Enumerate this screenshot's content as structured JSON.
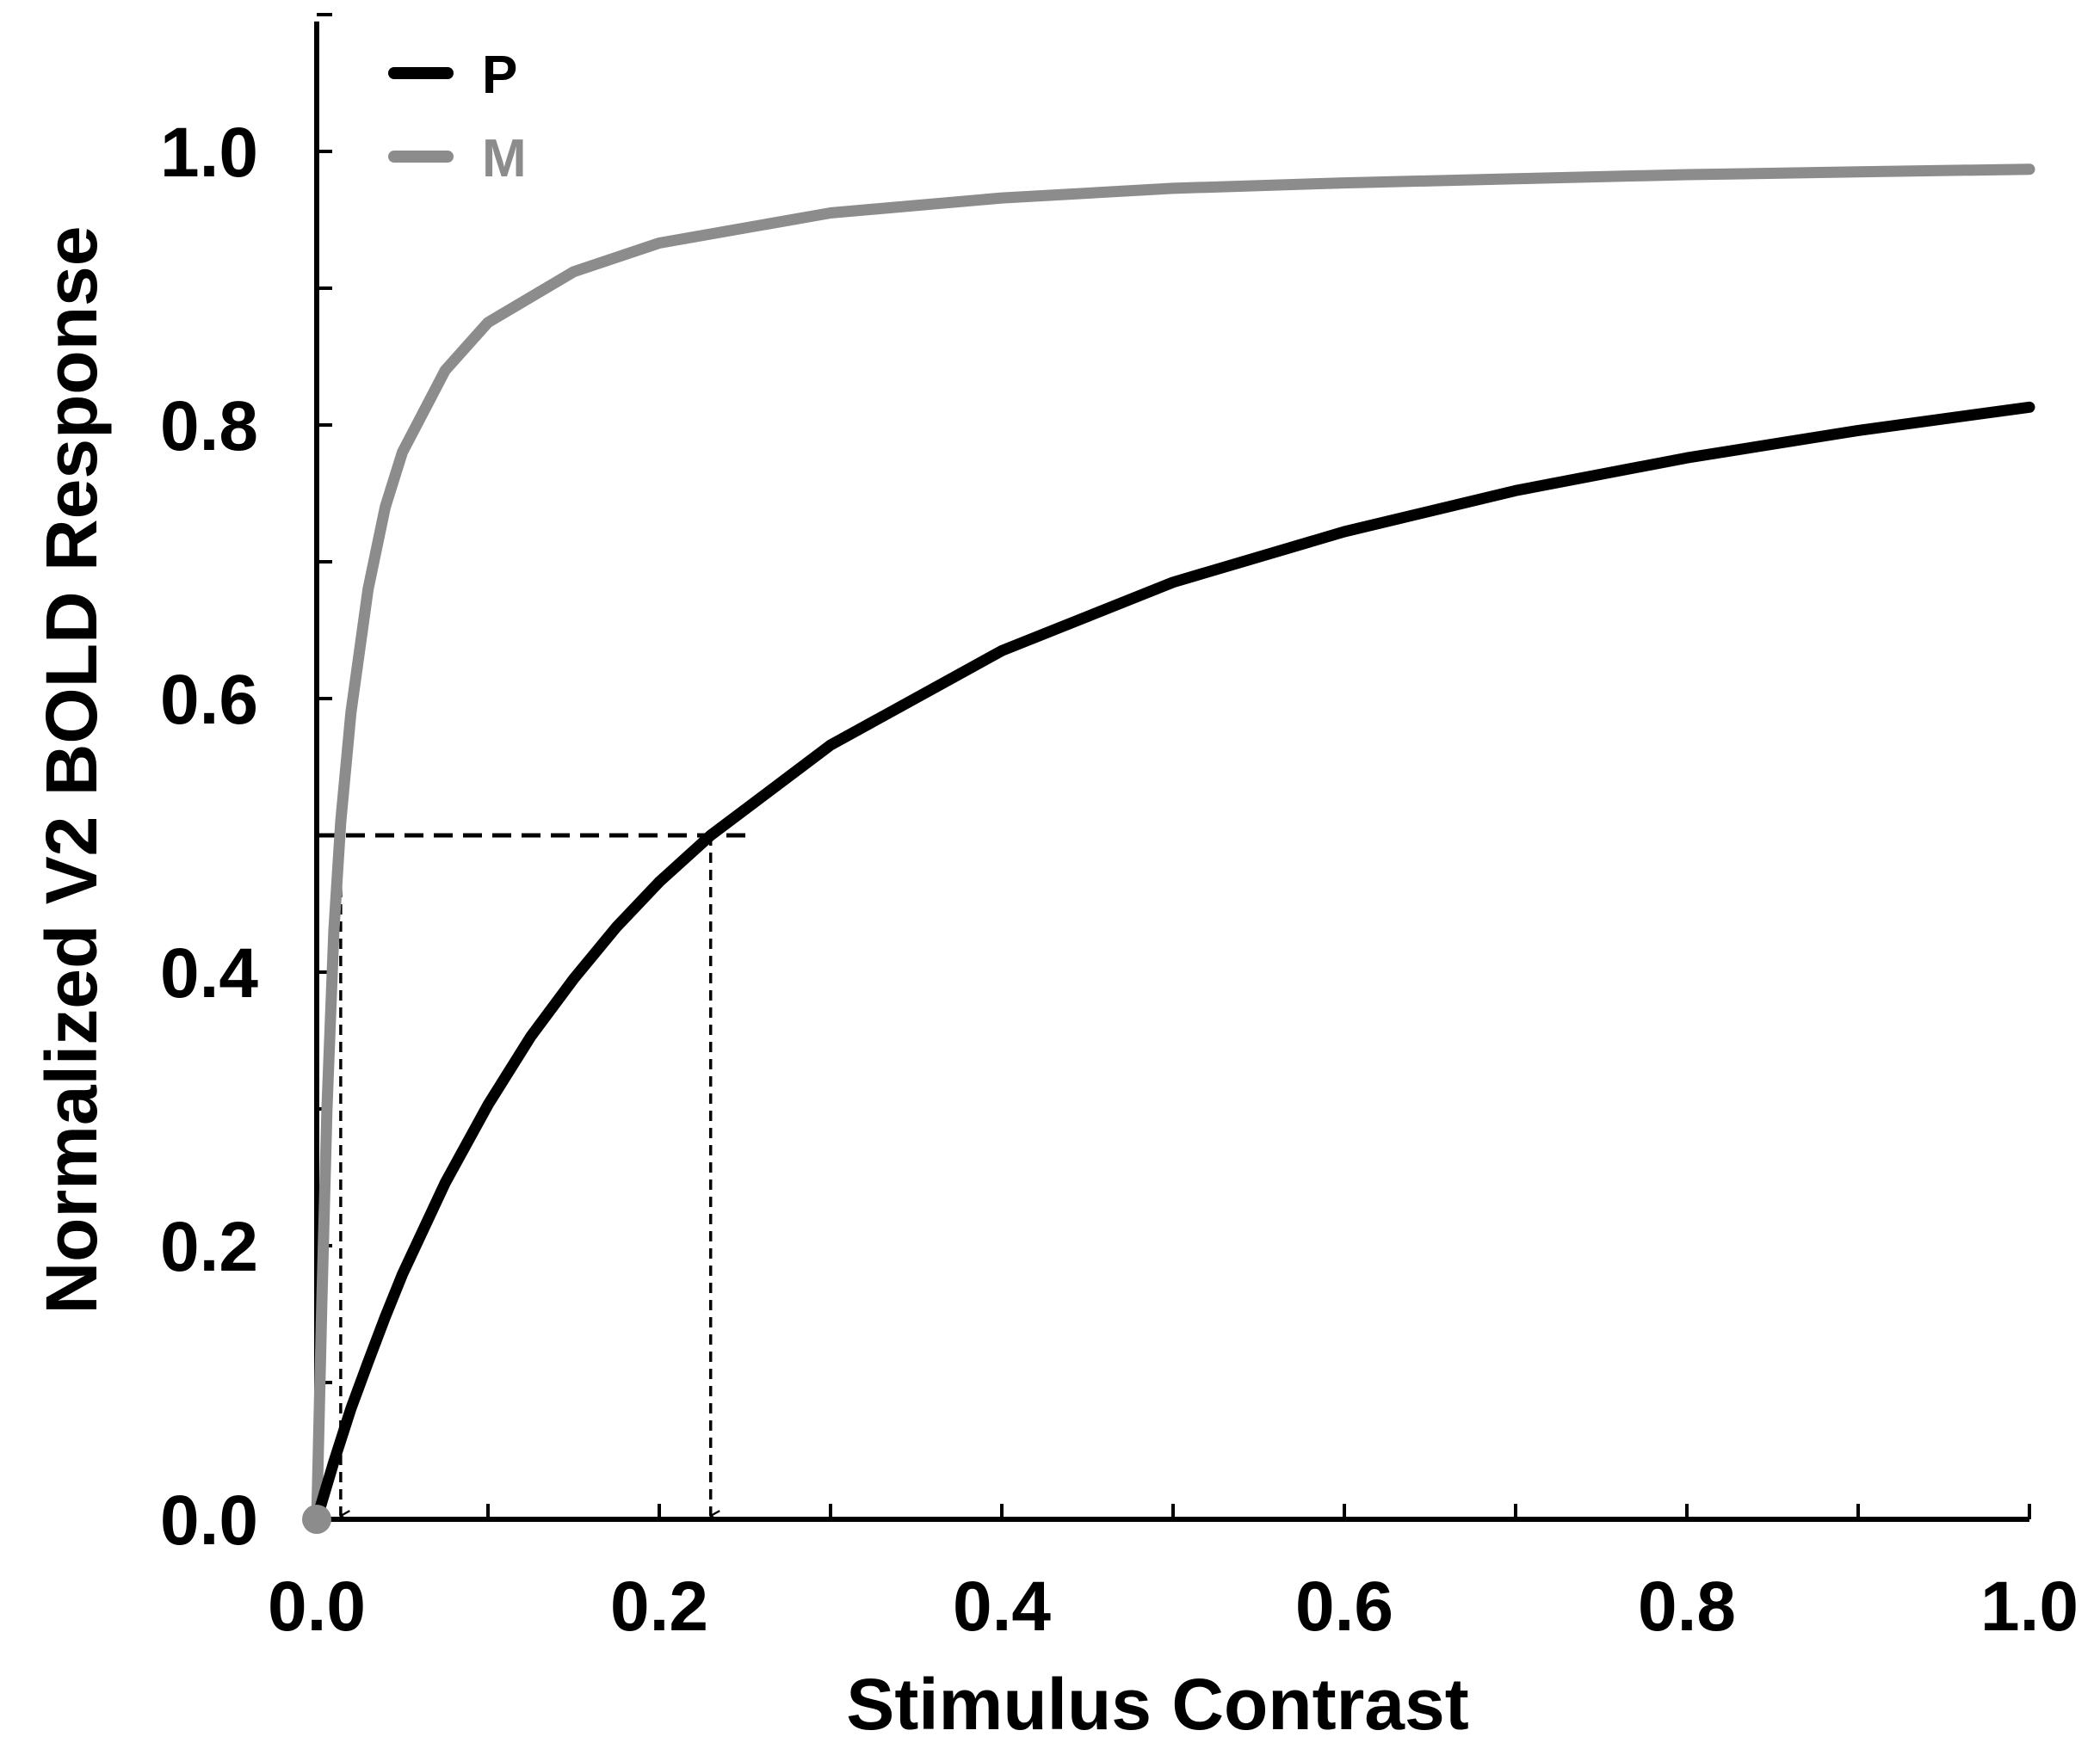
{
  "chart_data": {
    "type": "line",
    "xlabel": "Stimulus Contrast",
    "ylabel": "Normalized V2 BOLD Response",
    "xlim": [
      0,
      1.0
    ],
    "ylim": [
      0,
      1.1
    ],
    "x_ticks": [
      "0.0",
      "0.2",
      "0.4",
      "0.6",
      "0.8",
      "1.0"
    ],
    "y_ticks": [
      "0.0",
      "0.2",
      "0.4",
      "0.6",
      "0.8",
      "1.0"
    ],
    "x_minor_step": 0.1,
    "y_minor_step": 0.1,
    "grid": false,
    "legend": {
      "position": "top-left"
    },
    "series": [
      {
        "name": "P",
        "color": "#000000",
        "x": [
          0.0,
          0.01,
          0.02,
          0.03,
          0.04,
          0.05,
          0.075,
          0.1,
          0.125,
          0.15,
          0.175,
          0.2,
          0.23,
          0.3,
          0.4,
          0.5,
          0.6,
          0.7,
          0.8,
          0.9,
          1.0
        ],
        "y": [
          0.0,
          0.042,
          0.081,
          0.115,
          0.148,
          0.179,
          0.246,
          0.303,
          0.353,
          0.395,
          0.433,
          0.466,
          0.5,
          0.566,
          0.635,
          0.685,
          0.722,
          0.752,
          0.776,
          0.796,
          0.813
        ]
      },
      {
        "name": "M",
        "color": "#8c8c8c",
        "x": [
          0.0,
          0.003,
          0.006,
          0.01,
          0.014,
          0.02,
          0.03,
          0.04,
          0.05,
          0.075,
          0.1,
          0.15,
          0.2,
          0.3,
          0.4,
          0.5,
          0.6,
          0.7,
          0.8,
          0.9,
          1.0
        ],
        "y": [
          0.0,
          0.16,
          0.3,
          0.43,
          0.51,
          0.59,
          0.68,
          0.74,
          0.78,
          0.84,
          0.875,
          0.912,
          0.933,
          0.955,
          0.966,
          0.973,
          0.977,
          0.98,
          0.983,
          0.985,
          0.987
        ]
      }
    ],
    "reference_level": 0.5,
    "annotations": [
      {
        "series": "M",
        "x": 0.014,
        "y": 0.5
      },
      {
        "series": "P",
        "x": 0.23,
        "y": 0.5
      }
    ]
  }
}
